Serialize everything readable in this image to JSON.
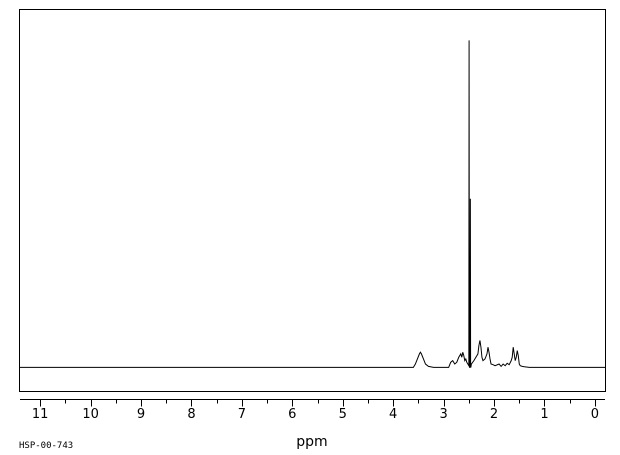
{
  "sample_id": "HSP-00-743",
  "chart_data": {
    "type": "line",
    "title": "",
    "xlabel": "ppm",
    "ylabel": "",
    "xlim": [
      11.4,
      -0.2
    ],
    "ylim": [
      -0.07,
      1.06
    ],
    "x_reversed": true,
    "grid": false,
    "x_ticks": [
      11,
      10,
      9,
      8,
      7,
      6,
      5,
      4,
      3,
      2,
      1,
      0
    ],
    "x_tick_labels": [
      "11",
      "10",
      "9",
      "8",
      "7",
      "6",
      "5",
      "4",
      "3",
      "2",
      "1",
      "0"
    ],
    "line_color": "#000000",
    "series": [
      {
        "x": [
          11.4,
          3.6,
          3.56,
          3.52,
          3.48,
          3.46,
          3.44,
          3.4,
          3.36,
          3.3,
          3.2,
          2.9,
          2.86,
          2.82,
          2.78,
          2.74,
          2.7,
          2.66,
          2.64,
          2.62,
          2.6,
          2.58,
          2.56,
          2.54,
          2.52,
          2.5,
          2.495,
          2.49,
          2.485,
          2.475,
          2.47,
          2.465,
          2.46,
          2.45,
          2.4,
          2.36,
          2.32,
          2.3,
          2.28,
          2.26,
          2.24,
          2.22,
          2.18,
          2.14,
          2.12,
          2.1,
          2.08,
          2.06,
          2.02,
          1.98,
          1.9,
          1.86,
          1.82,
          1.78,
          1.74,
          1.7,
          1.66,
          1.64,
          1.62,
          1.6,
          1.58,
          1.56,
          1.54,
          1.52,
          1.5,
          1.48,
          1.44,
          1.4,
          1.3,
          -0.2
        ],
        "y": [
          0.0,
          0.0,
          0.01,
          0.025,
          0.04,
          0.045,
          0.04,
          0.025,
          0.01,
          0.003,
          0.0,
          0.0,
          0.015,
          0.02,
          0.01,
          0.015,
          0.03,
          0.04,
          0.03,
          0.045,
          0.035,
          0.02,
          0.025,
          0.015,
          0.01,
          0.005,
          0.97,
          0.01,
          0.0,
          0.0,
          0.5,
          0.01,
          0.0,
          0.01,
          0.02,
          0.03,
          0.04,
          0.065,
          0.08,
          0.06,
          0.03,
          0.02,
          0.025,
          0.04,
          0.06,
          0.045,
          0.025,
          0.01,
          0.008,
          0.005,
          0.01,
          0.003,
          0.01,
          0.005,
          0.012,
          0.008,
          0.02,
          0.03,
          0.06,
          0.04,
          0.02,
          0.03,
          0.05,
          0.035,
          0.01,
          0.005,
          0.003,
          0.002,
          0.0,
          0.0
        ]
      }
    ]
  }
}
